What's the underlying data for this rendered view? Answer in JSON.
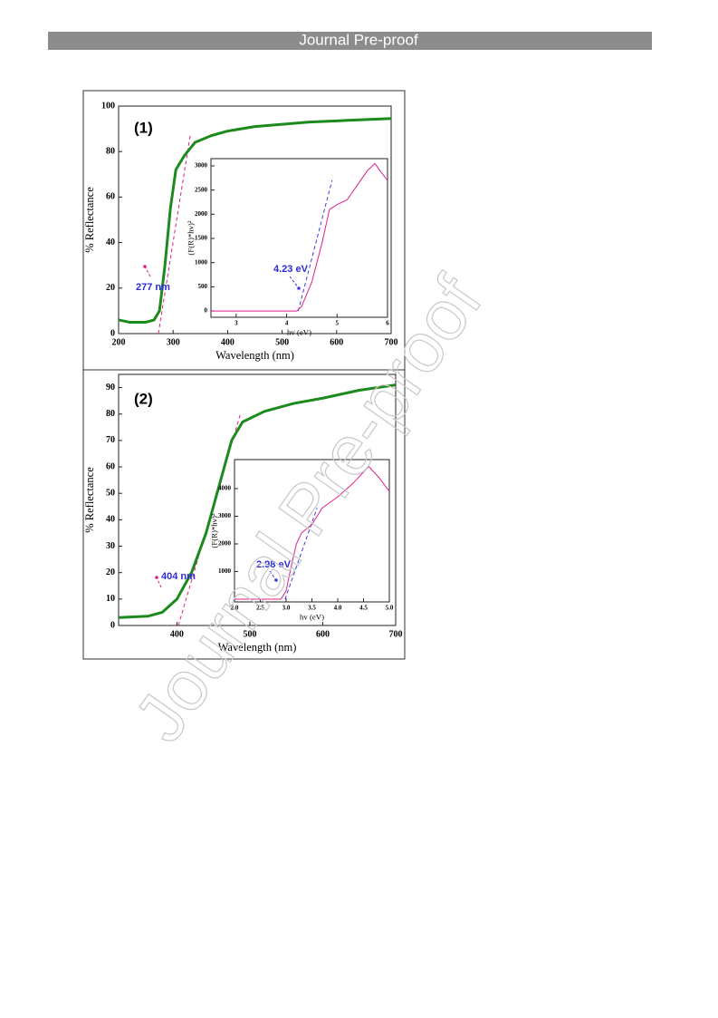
{
  "header": {
    "title": "Journal Pre-proof"
  },
  "watermark": "Journal Pre-proof",
  "chart_data": [
    {
      "type": "line",
      "panel_label": "(1)",
      "xlabel": "Wavelength (nm)",
      "ylabel": "% Reflectance",
      "xlim": [
        200,
        700
      ],
      "ylim": [
        0,
        100
      ],
      "xticks": [
        200,
        300,
        400,
        500,
        600,
        700
      ],
      "yticks": [
        0,
        20,
        40,
        60,
        80,
        100
      ],
      "x": [
        200,
        220,
        250,
        265,
        275,
        285,
        295,
        305,
        320,
        340,
        370,
        400,
        450,
        500,
        550,
        600,
        650,
        700
      ],
      "values": [
        6,
        5,
        5,
        6,
        10,
        30,
        55,
        72,
        78,
        84,
        87,
        89,
        91,
        92,
        93,
        93.5,
        94,
        94.5
      ],
      "color": "#1d8a1d",
      "tangent": {
        "x": [
          273,
          332
        ],
        "values": [
          0,
          88
        ],
        "color": "#e0208a"
      },
      "annotation": "277 nm"
    },
    {
      "type": "line",
      "inset": true,
      "xlabel": "hv (eV)",
      "ylabel": "(F(R)*hv)²",
      "xlim": [
        2.5,
        6
      ],
      "ylim": [
        -130,
        3150
      ],
      "xticks": [
        3,
        4,
        5,
        6
      ],
      "yticks": [
        0,
        500,
        1000,
        1500,
        2000,
        2500,
        3000
      ],
      "x": [
        2.5,
        3,
        3.5,
        4,
        4.2,
        4.3,
        4.5,
        4.7,
        4.85,
        5,
        5.2,
        5.4,
        5.6,
        5.75,
        5.85,
        6
      ],
      "values": [
        0,
        0,
        0,
        0,
        0,
        100,
        600,
        1400,
        2100,
        2200,
        2300,
        2600,
        2900,
        3050,
        2900,
        2700
      ],
      "color": "#e0208a",
      "tangent": {
        "x": [
          4.23,
          4.9
        ],
        "values": [
          0,
          2700
        ],
        "color": "#3a3adf"
      },
      "annotation": "4.23  eV"
    },
    {
      "type": "line",
      "panel_label": "(2)",
      "xlabel": "Wavelength (nm)",
      "ylabel": "% Reflectance",
      "xlim": [
        320,
        700
      ],
      "ylim": [
        0,
        95
      ],
      "xticks": [
        400,
        500,
        600,
        700
      ],
      "yticks": [
        0,
        10,
        20,
        30,
        40,
        50,
        60,
        70,
        80,
        90
      ],
      "x": [
        320,
        360,
        380,
        400,
        420,
        440,
        460,
        475,
        490,
        520,
        560,
        600,
        650,
        700
      ],
      "values": [
        3,
        3.5,
        5,
        10,
        20,
        35,
        55,
        70,
        77,
        81,
        84,
        86,
        89,
        91
      ],
      "color": "#1d8a1d",
      "tangent": {
        "x": [
          402,
          487
        ],
        "values": [
          0,
          80
        ],
        "color": "#e0208a"
      },
      "annotation": "404 nm"
    },
    {
      "type": "line",
      "inset": true,
      "xlabel": "hv (eV)",
      "ylabel": "(F(R)*hv)²",
      "xlim": [
        2,
        5
      ],
      "ylim": [
        -100,
        5050
      ],
      "xticks": [
        {
          "value": 2,
          "label": "2.0"
        },
        2.5,
        {
          "value": 3,
          "label": "3.0"
        },
        3.5,
        {
          "value": 4,
          "label": "4.0"
        },
        4.5,
        {
          "value": 5,
          "label": "5.0"
        }
      ],
      "yticks": [
        1000,
        2000,
        3000,
        4000
      ],
      "x": [
        2,
        2.5,
        2.9,
        3,
        3.1,
        3.2,
        3.3,
        3.5,
        3.7,
        4,
        4.3,
        4.6,
        4.8,
        5
      ],
      "values": [
        0,
        0,
        0,
        300,
        1200,
        2000,
        2400,
        2700,
        3300,
        3700,
        4200,
        4800,
        4400,
        3900
      ],
      "color": "#e0208a",
      "tangent": {
        "x": [
          2.98,
          3.6
        ],
        "values": [
          0,
          3300
        ],
        "color": "#3a3adf"
      },
      "annotation": "2.98 eV"
    }
  ]
}
